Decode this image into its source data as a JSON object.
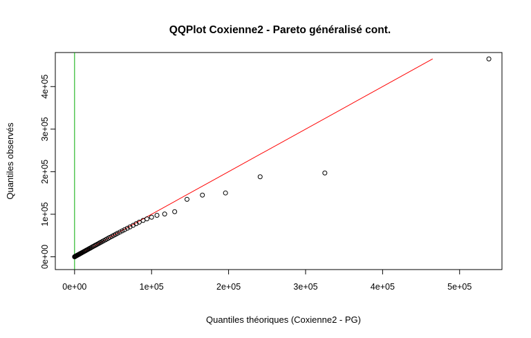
{
  "chart_data": {
    "type": "scatter",
    "title": "QQPlot Coxienne2 - Pareto généralisé cont.",
    "xlabel": "Quantiles théoriques (Coxienne2 - PG)",
    "ylabel": "Quantiles observés",
    "xlim": [
      -25000,
      555000
    ],
    "ylim": [
      -30000,
      480000
    ],
    "x_ticks": [
      0,
      100000,
      200000,
      300000,
      400000,
      500000
    ],
    "x_tick_labels": [
      "0e+00",
      "1e+05",
      "2e+05",
      "3e+05",
      "4e+05",
      "5e+05"
    ],
    "y_ticks": [
      0,
      100000,
      200000,
      300000,
      400000
    ],
    "y_tick_labels": [
      "0e+00",
      "1e+05",
      "2e+05",
      "3e+05",
      "4e+05"
    ],
    "points": {
      "x": [
        0,
        300,
        700,
        1200,
        1800,
        2500,
        3200,
        4000,
        4800,
        5600,
        6500,
        7400,
        8300,
        9200,
        10200,
        11200,
        12300,
        13400,
        14500,
        15700,
        16900,
        18100,
        19400,
        20700,
        22000,
        23400,
        24800,
        26300,
        27800,
        29400,
        31000,
        32700,
        34400,
        36200,
        38000,
        40000,
        42000,
        44000,
        46000,
        48500,
        51000,
        53500,
        56000,
        59000,
        62000,
        65000,
        68500,
        72000,
        76000,
        80000,
        84000,
        89000,
        94000,
        100000,
        107000,
        117000,
        130000,
        146000,
        166000,
        196000,
        241000,
        325000,
        538000
      ],
      "y": [
        0,
        300,
        800,
        1300,
        1900,
        2600,
        3300,
        4100,
        4900,
        5700,
        6600,
        7500,
        8400,
        9300,
        10300,
        11300,
        12400,
        13500,
        14600,
        15800,
        17000,
        18200,
        19500,
        20800,
        22100,
        23500,
        24900,
        26400,
        27900,
        29400,
        31000,
        32700,
        34400,
        36100,
        37900,
        39900,
        41900,
        43800,
        45800,
        48200,
        50600,
        53000,
        55500,
        58200,
        61000,
        63800,
        67000,
        70300,
        74000,
        77800,
        81500,
        85500,
        89200,
        93000,
        97500,
        100500,
        106000,
        135000,
        145000,
        150000,
        188000,
        197000,
        465000
      ]
    },
    "reference_lines": [
      {
        "name": "identity",
        "color": "#ff0000",
        "from": [
          0,
          0
        ],
        "to": [
          465000,
          465000
        ]
      },
      {
        "name": "vertical-zero",
        "color": "#00aa00",
        "x": 0
      }
    ],
    "grid": false,
    "legend": "none"
  }
}
